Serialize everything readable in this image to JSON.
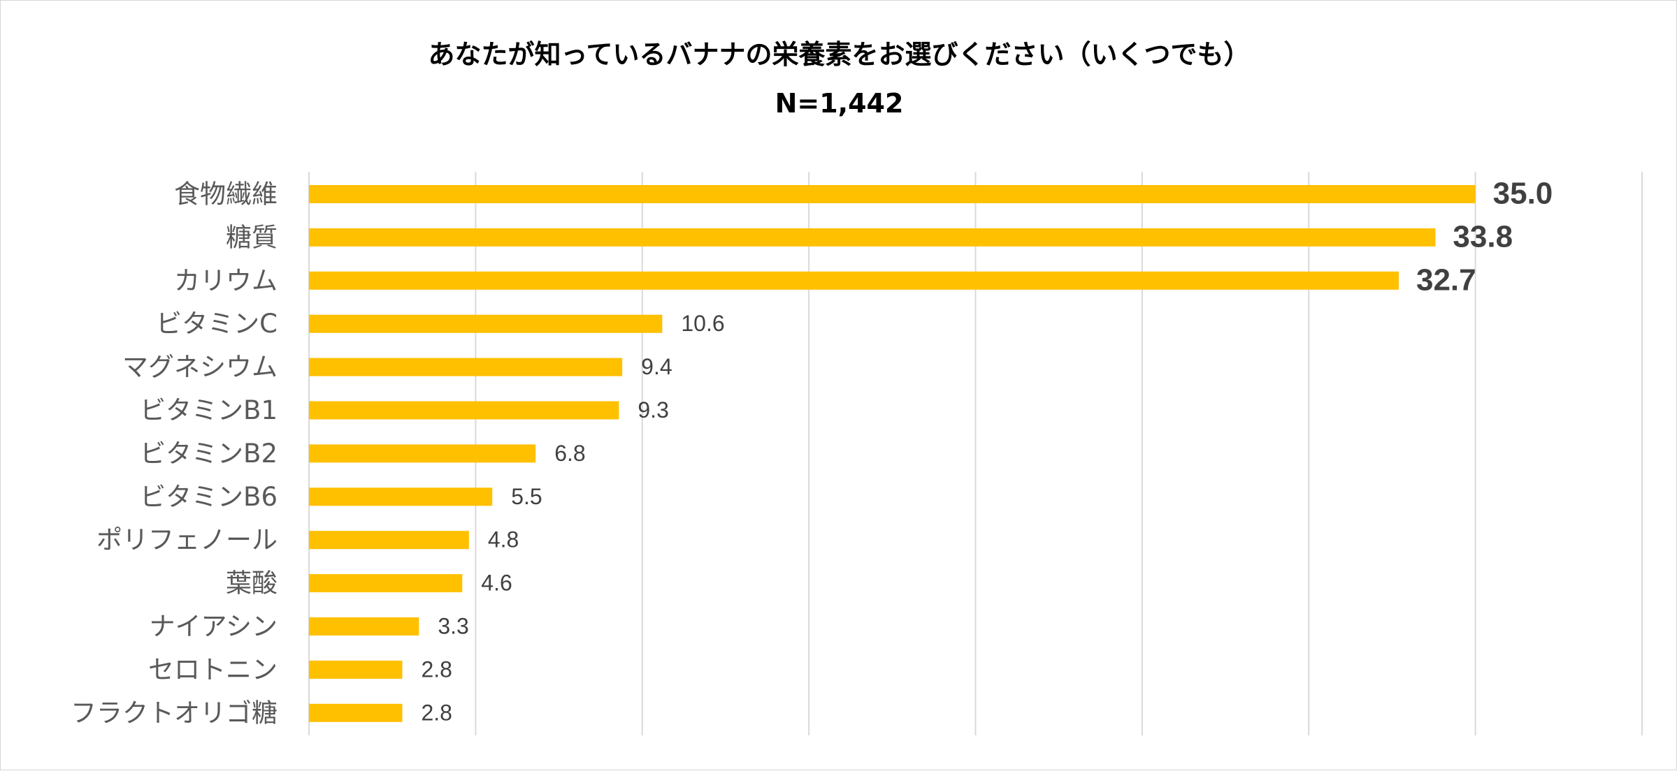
{
  "chart_data": {
    "type": "bar",
    "orientation": "horizontal",
    "title": "あなたが知っているバナナの栄養素をお選びください（いくつでも）",
    "subtitle": "N=1,442",
    "categories": [
      "食物繊維",
      "糖質",
      "カリウム",
      "ビタミンC",
      "マグネシウム",
      "ビタミンB1",
      "ビタミンB2",
      "ビタミンB6",
      "ポリフェノール",
      "葉酸",
      "ナイアシン",
      "セロトニン",
      "フラクトオリゴ糖"
    ],
    "values": [
      35.0,
      33.8,
      32.7,
      10.6,
      9.4,
      9.3,
      6.8,
      5.5,
      4.8,
      4.6,
      3.3,
      2.8,
      2.8
    ],
    "value_labels": [
      "35.0",
      "33.8",
      "32.7",
      "10.6",
      "9.4",
      "9.3",
      "6.8",
      "5.5",
      "4.8",
      "4.6",
      "3.3",
      "2.8",
      "2.8"
    ],
    "emphasized_top_n": 3,
    "xlim": [
      0,
      40
    ],
    "grid_interval": 5,
    "grid": true,
    "legend": "none",
    "bar_color": "#FFC000",
    "grid_color": "#D9D9D9"
  }
}
